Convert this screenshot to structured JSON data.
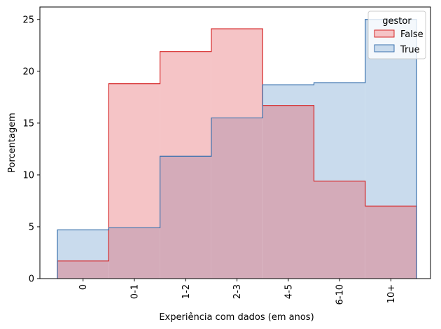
{
  "chart_data": {
    "type": "histogram-step",
    "categories": [
      "0",
      "0-1",
      "1-2",
      "2-3",
      "4-5",
      "6-10",
      "10+"
    ],
    "series": [
      {
        "name": "False",
        "values": [
          1.7,
          18.8,
          21.9,
          24.1,
          16.7,
          9.4,
          7.0
        ],
        "fill": "#f5c4c6",
        "stroke": "#d62728"
      },
      {
        "name": "True",
        "values": [
          4.7,
          4.9,
          11.8,
          15.5,
          18.7,
          18.9,
          25.0
        ],
        "fill": "#c9dbed",
        "stroke": "#3a72ae"
      }
    ],
    "overlap_fill": "#d4abb9",
    "xlabel": "Experiência com dados (em anos)",
    "ylabel": "Porcentagem",
    "ylim": [
      0,
      26.2
    ],
    "yticks": [
      0,
      5,
      10,
      15,
      20,
      25
    ],
    "legend": {
      "title": "gestor",
      "placement": "top-right"
    },
    "grid": false
  }
}
